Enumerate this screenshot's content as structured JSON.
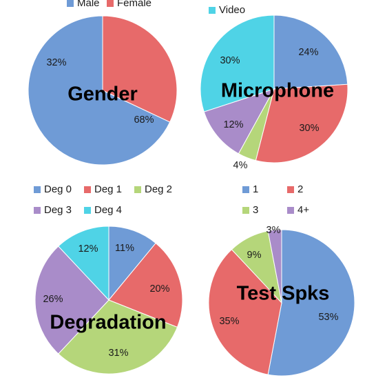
{
  "chart_data": [
    {
      "type": "pie",
      "title": "Gender",
      "legend_position": "top",
      "slices": [
        {
          "name": "Male",
          "value": 68,
          "label": "68%",
          "color": "#6f9bd6"
        },
        {
          "name": "Female",
          "value": 32,
          "label": "32%",
          "color": "#e76a6a"
        }
      ]
    },
    {
      "type": "pie",
      "title": "Microphone",
      "legend_position": "top",
      "slices": [
        {
          "value": 24,
          "label": "24%",
          "color": "#6f9bd6"
        },
        {
          "value": 30,
          "label": "30%",
          "color": "#e76a6a"
        },
        {
          "value": 4,
          "label": "4%",
          "color": "#b5d67a"
        },
        {
          "value": 12,
          "label": "12%",
          "color": "#a98cc9"
        },
        {
          "name": "Video",
          "value": 30,
          "label": "30%",
          "color": "#4fd3e6"
        }
      ]
    },
    {
      "type": "pie",
      "title": "Degradation",
      "legend_position": "top",
      "slices": [
        {
          "name": "Deg 0",
          "value": 11,
          "label": "11%",
          "color": "#6f9bd6"
        },
        {
          "name": "Deg 1",
          "value": 20,
          "label": "20%",
          "color": "#e76a6a"
        },
        {
          "name": "Deg 2",
          "value": 31,
          "label": "31%",
          "color": "#b5d67a"
        },
        {
          "name": "Deg 3",
          "value": 26,
          "label": "26%",
          "color": "#a98cc9"
        },
        {
          "name": "Deg 4",
          "value": 12,
          "label": "12%",
          "color": "#4fd3e6"
        }
      ]
    },
    {
      "type": "pie",
      "title": "Test Spks",
      "legend_position": "top",
      "slices": [
        {
          "name": "1",
          "value": 53,
          "label": "53%",
          "color": "#6f9bd6"
        },
        {
          "name": "2",
          "value": 35,
          "label": "35%",
          "color": "#e76a6a"
        },
        {
          "name": "3",
          "value": 9,
          "label": "9%",
          "color": "#b5d67a"
        },
        {
          "name": "4+",
          "value": 3,
          "label": "3%",
          "color": "#a98cc9"
        }
      ]
    }
  ]
}
